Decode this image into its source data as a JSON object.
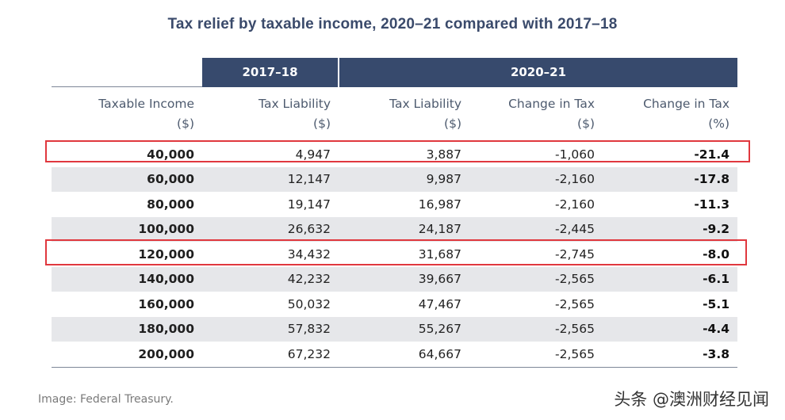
{
  "title": "Tax relief by taxable income, 2020–21 compared with 2017–18",
  "table": {
    "group_headers": [
      "",
      "2017–18",
      "2020–21"
    ],
    "columns": [
      {
        "line1": "Taxable Income",
        "line2": "($)"
      },
      {
        "line1": "Tax Liability",
        "line2": "($)"
      },
      {
        "line1": "Tax Liability",
        "line2": "($)"
      },
      {
        "line1": "Change in Tax",
        "line2": "($)"
      },
      {
        "line1": "Change in Tax",
        "line2": "(%)"
      }
    ],
    "rows": [
      [
        "40,000",
        "4,947",
        "3,887",
        "-1,060",
        "-21.4"
      ],
      [
        "60,000",
        "12,147",
        "9,987",
        "-2,160",
        "-17.8"
      ],
      [
        "80,000",
        "19,147",
        "16,987",
        "-2,160",
        "-11.3"
      ],
      [
        "100,000",
        "26,632",
        "24,187",
        "-2,445",
        "-9.2"
      ],
      [
        "120,000",
        "34,432",
        "31,687",
        "-2,745",
        "-8.0"
      ],
      [
        "140,000",
        "42,232",
        "39,667",
        "-2,565",
        "-6.1"
      ],
      [
        "160,000",
        "50,032",
        "47,467",
        "-2,565",
        "-5.1"
      ],
      [
        "180,000",
        "57,832",
        "55,267",
        "-2,565",
        "-4.4"
      ],
      [
        "200,000",
        "67,232",
        "64,667",
        "-2,565",
        "-3.8"
      ]
    ]
  },
  "source": "Image: Federal Treasury.",
  "watermark": "头条 @澳洲财经见闻",
  "colors": {
    "header_bg": "#374a6d",
    "title": "#3a4a6b",
    "shade": "#e6e7ea",
    "highlight": "#e0383e"
  }
}
